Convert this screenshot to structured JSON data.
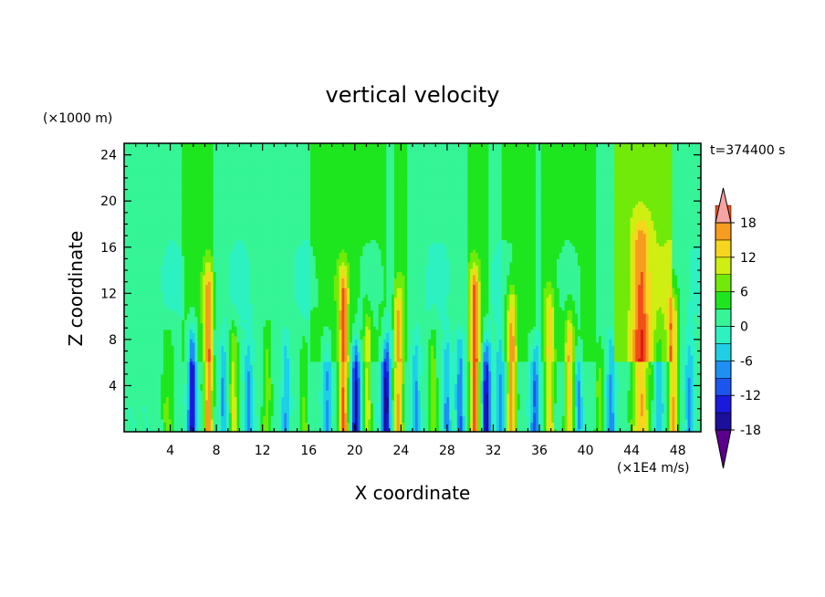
{
  "chart_data": {
    "type": "heatmap",
    "title": "vertical velocity",
    "xlabel": "X coordinate",
    "ylabel": "Z coordinate",
    "y_unit_label": "(×1000 m)",
    "colorbar_unit_label": "(×1E4 m/s)",
    "time_label": "t=374400 s",
    "xlim": [
      0,
      50
    ],
    "ylim": [
      0,
      25
    ],
    "x_ticks": [
      4,
      8,
      12,
      16,
      20,
      24,
      28,
      32,
      36,
      40,
      44,
      48
    ],
    "y_ticks": [
      4,
      8,
      12,
      16,
      20,
      24
    ],
    "grid": false,
    "colorbar": {
      "levels": [
        -21,
        -18,
        -15,
        -12,
        -9,
        -6,
        -3,
        0,
        3,
        6,
        9,
        12,
        15,
        18,
        21
      ],
      "tick_labels": [
        18,
        12,
        6,
        0,
        -6,
        -12,
        -18
      ],
      "extend": "both",
      "colors": [
        "#5a008c",
        "#1c0f9c",
        "#1a1adc",
        "#1c55ee",
        "#1e8ff3",
        "#1ecfe6",
        "#2cf2c2",
        "#35f596",
        "#1ee61e",
        "#71ea09",
        "#cfee12",
        "#f6d61c",
        "#f69c1e",
        "#f05018",
        "#e01814",
        "#f5a3a3"
      ]
    },
    "features": [
      {
        "x": 3.8,
        "w": 0.55,
        "amp": 6,
        "h": 7
      },
      {
        "x": 5.9,
        "w": 0.35,
        "amp": -17,
        "h": 7
      },
      {
        "x": 7.3,
        "w": 0.4,
        "amp": 16,
        "h": 12
      },
      {
        "x": 8.6,
        "w": 0.3,
        "amp": -8,
        "h": 6
      },
      {
        "x": 9.5,
        "w": 0.35,
        "amp": 11,
        "h": 7
      },
      {
        "x": 10.8,
        "w": 0.35,
        "amp": -8,
        "h": 6
      },
      {
        "x": 12.4,
        "w": 0.4,
        "amp": 7,
        "h": 7
      },
      {
        "x": 14.0,
        "w": 0.35,
        "amp": -7,
        "h": 6
      },
      {
        "x": 15.6,
        "w": 0.4,
        "amp": 6,
        "h": 6
      },
      {
        "x": 17.6,
        "w": 0.35,
        "amp": -8,
        "h": 6
      },
      {
        "x": 19.0,
        "w": 0.4,
        "amp": 18,
        "h": 12
      },
      {
        "x": 20.1,
        "w": 0.35,
        "amp": -18,
        "h": 6
      },
      {
        "x": 21.1,
        "w": 0.3,
        "amp": 10,
        "h": 8
      },
      {
        "x": 22.7,
        "w": 0.35,
        "amp": -19,
        "h": 6
      },
      {
        "x": 23.8,
        "w": 0.4,
        "amp": 15,
        "h": 10
      },
      {
        "x": 25.3,
        "w": 0.35,
        "amp": -8,
        "h": 6
      },
      {
        "x": 26.8,
        "w": 0.35,
        "amp": 8,
        "h": 7
      },
      {
        "x": 28.0,
        "w": 0.35,
        "amp": -8,
        "h": 6
      },
      {
        "x": 29.1,
        "w": 0.35,
        "amp": -10,
        "h": 6
      },
      {
        "x": 30.4,
        "w": 0.4,
        "amp": 19,
        "h": 12
      },
      {
        "x": 31.4,
        "w": 0.35,
        "amp": -18,
        "h": 6
      },
      {
        "x": 32.6,
        "w": 0.35,
        "amp": -9,
        "h": 6
      },
      {
        "x": 33.6,
        "w": 0.4,
        "amp": 16,
        "h": 10
      },
      {
        "x": 35.6,
        "w": 0.35,
        "amp": -11,
        "h": 6
      },
      {
        "x": 36.9,
        "w": 0.4,
        "amp": 12,
        "h": 10
      },
      {
        "x": 38.6,
        "w": 0.35,
        "amp": 14,
        "h": 8
      },
      {
        "x": 39.4,
        "w": 0.3,
        "amp": -8,
        "h": 5
      },
      {
        "x": 41.2,
        "w": 0.35,
        "amp": 7,
        "h": 6
      },
      {
        "x": 42.2,
        "w": 0.35,
        "amp": -9,
        "h": 6
      },
      {
        "x": 44.8,
        "w": 0.75,
        "amp": 14,
        "h": 16
      },
      {
        "x": 46.4,
        "w": 0.35,
        "amp": -7,
        "h": 6
      },
      {
        "x": 47.6,
        "w": 0.4,
        "amp": 15,
        "h": 10
      },
      {
        "x": 49.0,
        "w": 0.35,
        "amp": -8,
        "h": 6
      }
    ],
    "upper_bands": [
      {
        "x0": 5.0,
        "x1": 7.8,
        "value": 0.8
      },
      {
        "x0": 16.2,
        "x1": 22.8,
        "value": 0.8
      },
      {
        "x0": 23.5,
        "x1": 24.5,
        "value": 0.6
      },
      {
        "x0": 29.8,
        "x1": 31.6,
        "value": 0.6
      },
      {
        "x0": 32.8,
        "x1": 35.6,
        "value": 0.7
      },
      {
        "x0": 36.2,
        "x1": 40.8,
        "value": 0.8
      },
      {
        "x0": 42.4,
        "x1": 47.5,
        "value": 5.2
      }
    ]
  }
}
